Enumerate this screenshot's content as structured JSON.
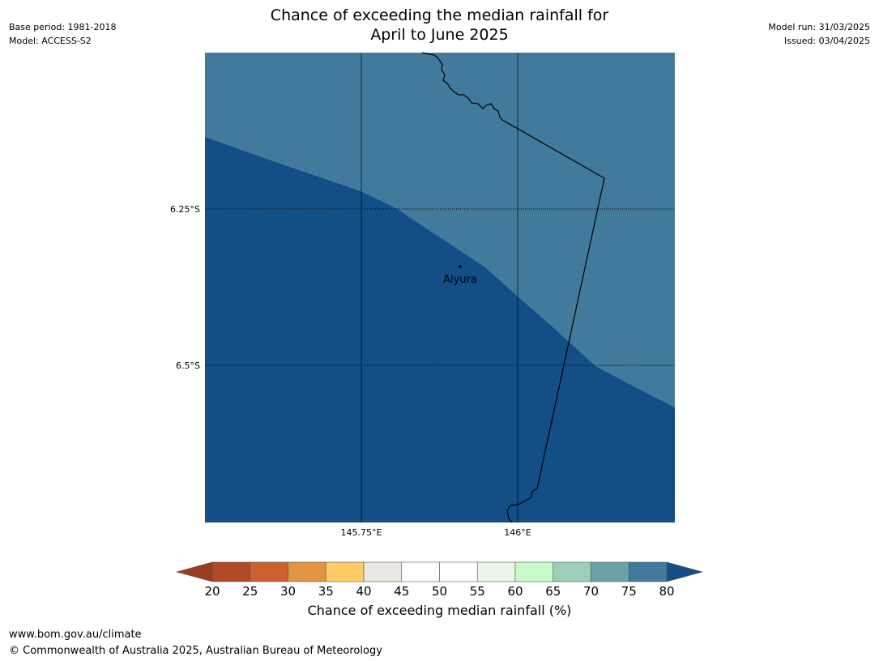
{
  "header": {
    "title_line1": "Chance of exceeding the median rainfall for",
    "title_line2": "April to June 2025",
    "base_period": "Base period: 1981-2018",
    "model": "Model: ACCESS-S2",
    "model_run": "Model run: 31/03/2025",
    "issued": "Issued: 03/04/2025"
  },
  "map": {
    "lat_labels": [
      "6.25°S",
      "6.5°S"
    ],
    "lon_labels": [
      "145.75°E",
      "146°E"
    ],
    "place": "Aiyura",
    "colors": {
      "upper_region": "#427a9b",
      "lower_region": "#134e87",
      "coastline": "#000000"
    }
  },
  "colorbar": {
    "label": "Chance of exceeding median rainfall (%)",
    "ticks": [
      "20",
      "25",
      "30",
      "35",
      "40",
      "45",
      "50",
      "55",
      "60",
      "65",
      "70",
      "75",
      "80"
    ],
    "under_color": "#9a3d22",
    "over_color": "#134e87",
    "bins": [
      {
        "range": "20-25",
        "color": "#b14a26"
      },
      {
        "range": "25-30",
        "color": "#cd6132"
      },
      {
        "range": "30-35",
        "color": "#e29444"
      },
      {
        "range": "35-40",
        "color": "#fecb66"
      },
      {
        "range": "40-45",
        "color": "#ece7e3"
      },
      {
        "range": "45-50",
        "color": "#ffffff"
      },
      {
        "range": "50-55",
        "color": "#ffffff"
      },
      {
        "range": "55-60",
        "color": "#e9f6e8"
      },
      {
        "range": "60-65",
        "color": "#c8fbc9"
      },
      {
        "range": "65-70",
        "color": "#9bcfb7"
      },
      {
        "range": "70-75",
        "color": "#6ca2a6"
      },
      {
        "range": "75-80",
        "color": "#427a9b"
      }
    ]
  },
  "footer": {
    "url": "www.bom.gov.au/climate",
    "copyright": "© Commonwealth of Australia 2025, Australian Bureau of Meteorology"
  }
}
